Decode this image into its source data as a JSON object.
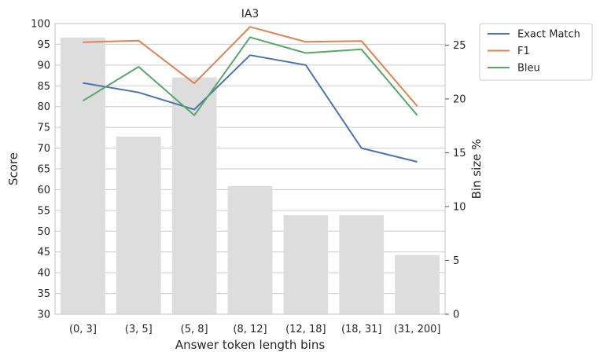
{
  "chart_data": {
    "type": "bar+line",
    "title": "IA3",
    "xlabel": "Answer token length bins",
    "ylabel": "Score",
    "y2label": "Bin size %",
    "categories": [
      "(0, 3]",
      "(3, 5]",
      "(5, 8]",
      "(8, 12]",
      "(12, 18]",
      "(18, 31]",
      "(31, 200]"
    ],
    "ylim": [
      30,
      100
    ],
    "yticks": [
      30,
      35,
      40,
      45,
      50,
      55,
      60,
      65,
      70,
      75,
      80,
      85,
      90,
      95,
      100
    ],
    "y2lim": [
      0,
      27
    ],
    "y2ticks": [
      0,
      5,
      10,
      15,
      20,
      25
    ],
    "grid": true,
    "legend_position": "outside-top-right",
    "bars": {
      "axis": "right",
      "color": "#dddddd",
      "values": [
        25.7,
        16.5,
        22.0,
        11.9,
        9.2,
        9.2,
        5.5
      ]
    },
    "series": [
      {
        "name": "Exact Match",
        "color": "#4c72b0",
        "values": [
          85.7,
          83.4,
          79.3,
          92.4,
          90.0,
          70.0,
          66.7
        ]
      },
      {
        "name": "F1",
        "color": "#dd8452",
        "values": [
          95.5,
          95.9,
          85.6,
          99.2,
          95.6,
          95.8,
          80.1
        ]
      },
      {
        "name": "Bleu",
        "color": "#55a868",
        "values": [
          81.4,
          89.6,
          77.9,
          96.7,
          92.9,
          93.8,
          77.9
        ]
      }
    ]
  }
}
